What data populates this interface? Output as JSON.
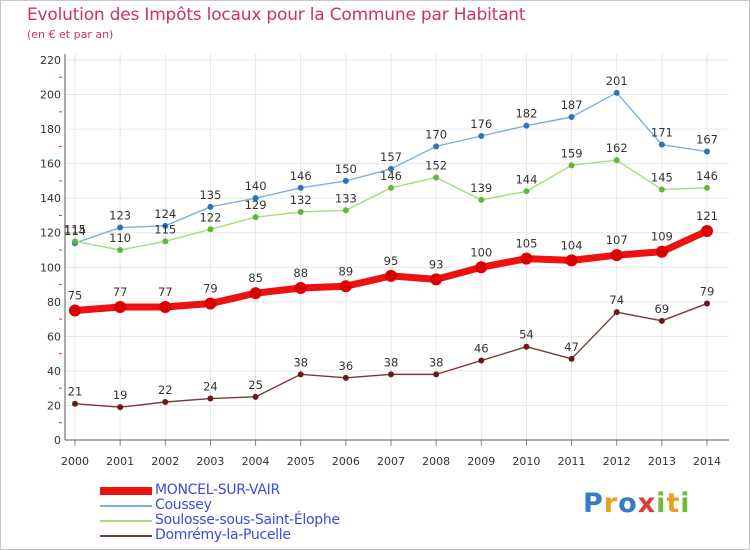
{
  "title": "Evolution des Impôts locaux pour la Commune par Habitant",
  "subtitle": "(en € et par an)",
  "logo": {
    "text": "Proxiti",
    "letters": [
      "P",
      "r",
      "o",
      "x",
      "i",
      "t",
      "i"
    ],
    "colors": [
      "#3a78c8",
      "#e8a020",
      "#3a78c8",
      "#e23a3a",
      "#6cbd3a",
      "#e8a020",
      "#6cbd3a"
    ]
  },
  "colors": {
    "grid": "#e6e6e6",
    "axis": "#555555",
    "tick_text": "#333333",
    "red_tick": "#e03030"
  },
  "chart_data": {
    "type": "line",
    "title": "Evolution des Impôts locaux pour la Commune par Habitant",
    "subtitle": "(en € et par an)",
    "x": [
      "2000",
      "2001",
      "2002",
      "2003",
      "2004",
      "2005",
      "2006",
      "2007",
      "2008",
      "2009",
      "2010",
      "2011",
      "2012",
      "2013",
      "2014"
    ],
    "ylim": [
      0,
      220
    ],
    "yticks": [
      0,
      20,
      40,
      60,
      80,
      100,
      120,
      140,
      160,
      180,
      200,
      220
    ],
    "grid": true,
    "legend": "bottom-left",
    "series": [
      {
        "name": "MONCEL-SUR-VAIR",
        "color": "#ee1111",
        "marker_color": "#dd0000",
        "emphasis": true,
        "values": [
          75,
          77,
          77,
          79,
          85,
          88,
          89,
          95,
          93,
          100,
          105,
          104,
          107,
          109,
          121
        ],
        "labels": [
          "75",
          "77",
          "77",
          "79",
          "85",
          "88",
          "89",
          "95",
          "93",
          "100",
          "105",
          "104",
          "107",
          "109",
          "121"
        ]
      },
      {
        "name": "Coussey",
        "color": "#7fb0dc",
        "marker_color": "#2d74b8",
        "emphasis": false,
        "values": [
          114,
          123,
          124,
          135,
          140,
          146,
          150,
          157,
          170,
          176,
          182,
          187,
          201,
          171,
          167
        ],
        "labels": [
          "114",
          "123",
          "124",
          "135",
          "140",
          "146",
          "150",
          "157",
          "170",
          "176",
          "182",
          "187",
          "201",
          "171",
          "167"
        ]
      },
      {
        "name": "Soulosse-sous-Saint-Élophe",
        "color": "#a6dd7a",
        "marker_color": "#5fb83a",
        "emphasis": false,
        "values": [
          115,
          110,
          115,
          122,
          129,
          132,
          133,
          146,
          152,
          139,
          144,
          159,
          162,
          145,
          146
        ],
        "labels": [
          "115",
          "110",
          "115",
          "122",
          "129",
          "132",
          "133",
          "146",
          "152",
          "139",
          "144",
          "159",
          "162",
          "145",
          "146"
        ]
      },
      {
        "name": "Domrémy-la-Pucelle",
        "color": "#7a3a3a",
        "marker_color": "#6a1a1a",
        "emphasis": false,
        "values": [
          21,
          19,
          22,
          24,
          25,
          38,
          36,
          38,
          38,
          46,
          54,
          47,
          74,
          69,
          79
        ],
        "labels": [
          "21",
          "19",
          "22",
          "24",
          "25",
          "38",
          "36",
          "38",
          "38",
          "46",
          "54",
          "47",
          "74",
          "69",
          "79"
        ]
      }
    ]
  }
}
